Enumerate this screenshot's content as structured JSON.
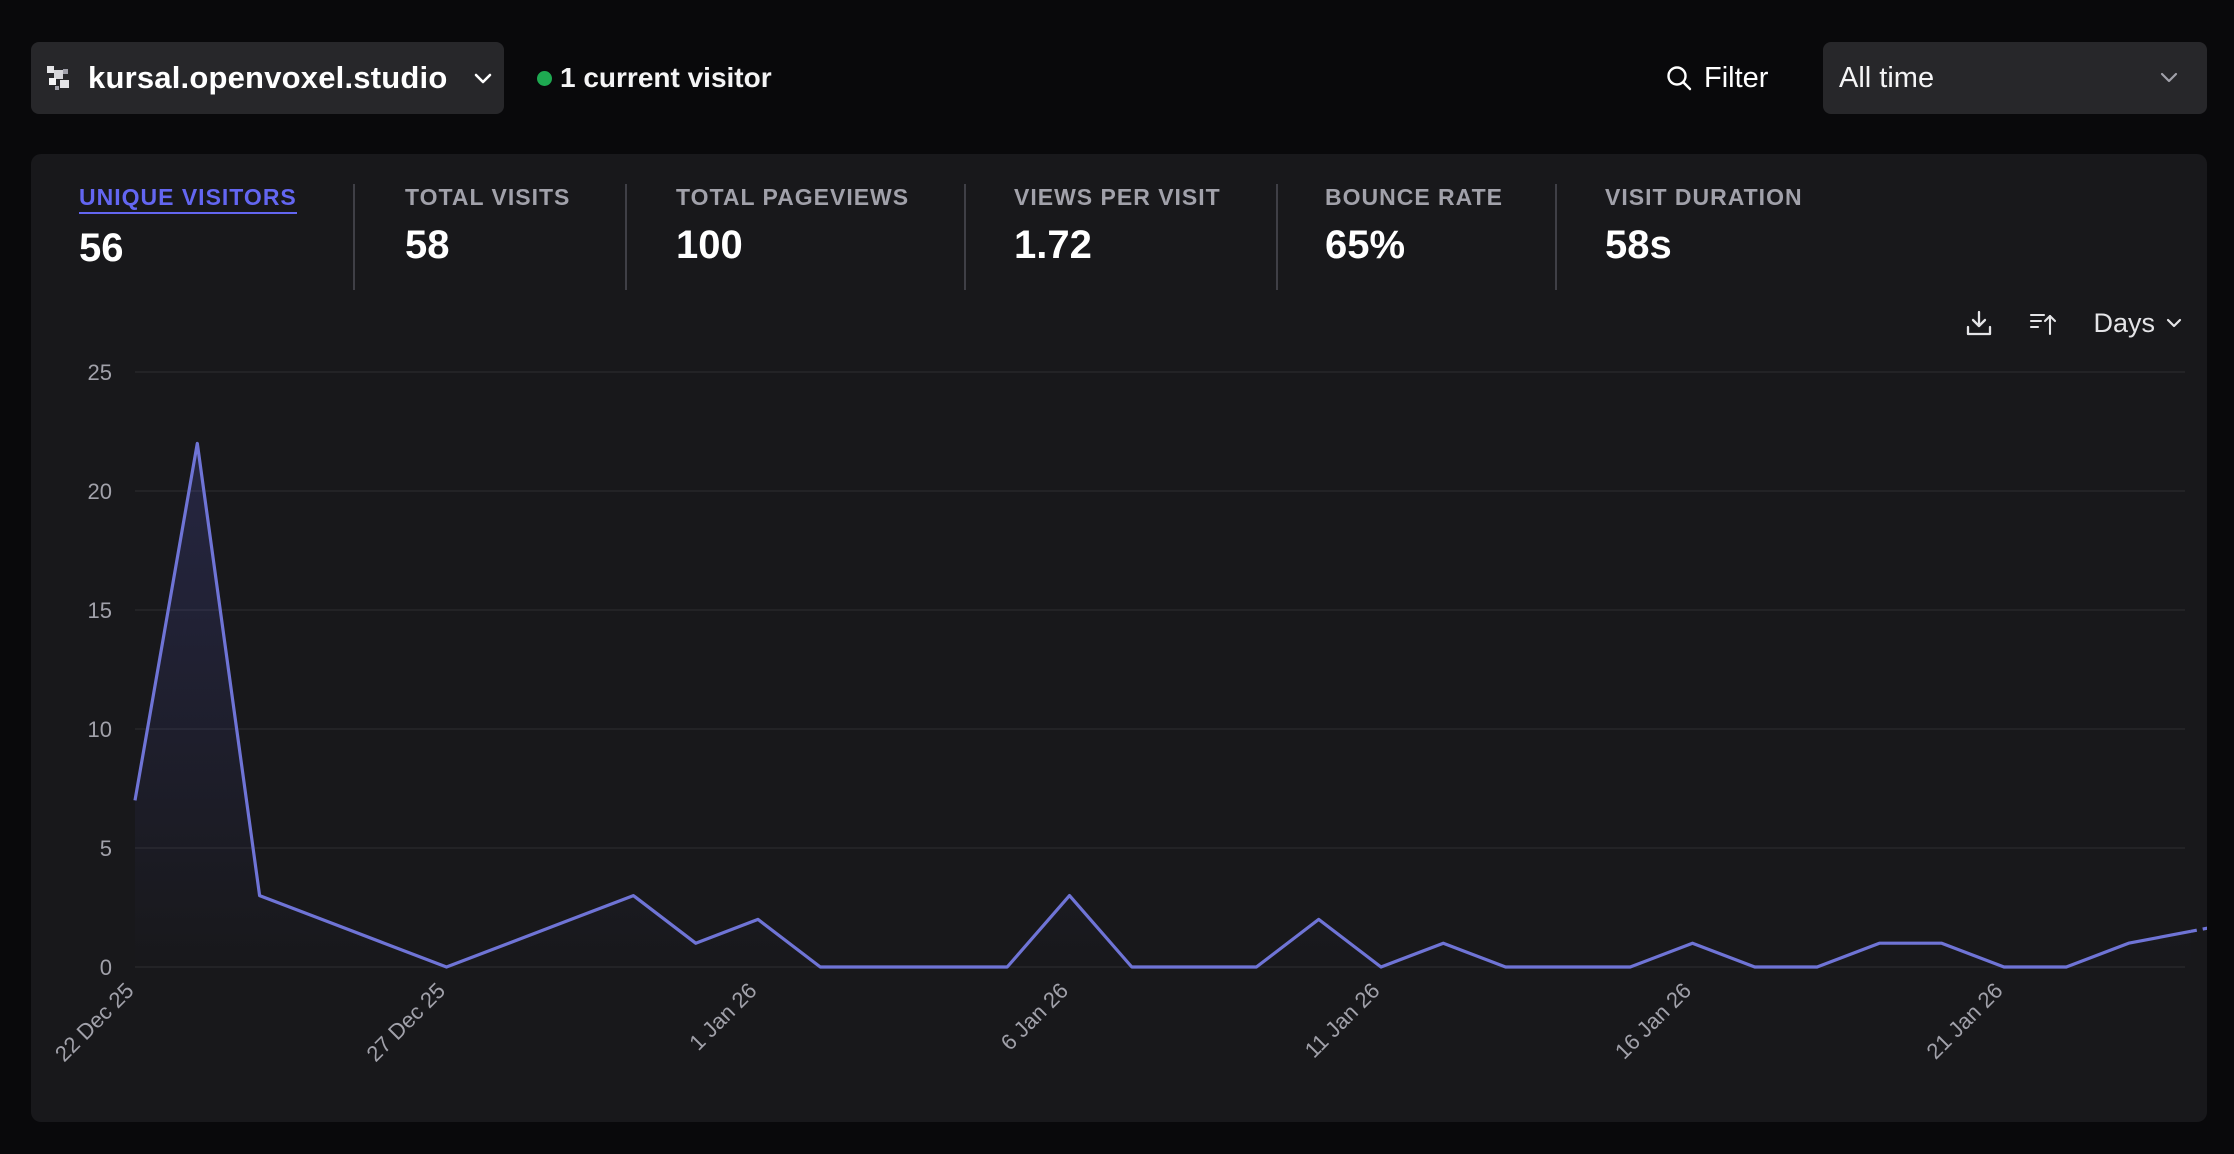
{
  "header": {
    "site_name": "kursal.openvoxel.studio",
    "current_visitors": "1 current visitor",
    "filter_label": "Filter",
    "period": "All time"
  },
  "stats": [
    {
      "label": "UNIQUE VISITORS",
      "value": "56",
      "active": true
    },
    {
      "label": "TOTAL VISITS",
      "value": "58",
      "active": false
    },
    {
      "label": "TOTAL PAGEVIEWS",
      "value": "100",
      "active": false
    },
    {
      "label": "VIEWS PER VISIT",
      "value": "1.72",
      "active": false
    },
    {
      "label": "BOUNCE RATE",
      "value": "65%",
      "active": false
    },
    {
      "label": "VISIT DURATION",
      "value": "58s",
      "active": false
    }
  ],
  "chart_controls": {
    "interval": "Days",
    "download_icon": "download-icon",
    "sort_icon": "sort-ascending-icon"
  },
  "colors": {
    "accent": "#6366f1",
    "line": "#6f74d6",
    "live": "#22c55e",
    "background": "#09090b",
    "panel": "#18181b"
  },
  "chart_data": {
    "type": "line",
    "title": "",
    "xlabel": "",
    "ylabel": "",
    "ylim": [
      0,
      25
    ],
    "yticks": [
      0,
      5,
      10,
      15,
      20,
      25
    ],
    "grid": true,
    "x_tick_labels": [
      "22 Dec 25",
      "27 Dec 25",
      "1 Jan 26",
      "6 Jan 26",
      "11 Jan 26",
      "16 Jan 26",
      "21 Jan 26"
    ],
    "x": [
      "22 Dec 25",
      "23 Dec 25",
      "24 Dec 25",
      "25 Dec 25",
      "26 Dec 25",
      "27 Dec 25",
      "28 Dec 25",
      "29 Dec 25",
      "30 Dec 25",
      "31 Dec 25",
      "1 Jan 26",
      "2 Jan 26",
      "3 Jan 26",
      "4 Jan 26",
      "5 Jan 26",
      "6 Jan 26",
      "7 Jan 26",
      "8 Jan 26",
      "9 Jan 26",
      "10 Jan 26",
      "11 Jan 26",
      "12 Jan 26",
      "13 Jan 26",
      "14 Jan 26",
      "15 Jan 26",
      "16 Jan 26",
      "17 Jan 26",
      "18 Jan 26",
      "19 Jan 26",
      "20 Jan 26",
      "21 Jan 26",
      "22 Jan 26",
      "23 Jan 26",
      "24 Jan 26",
      "25 Jan 26"
    ],
    "series": [
      {
        "values": [
          7,
          22,
          3,
          2,
          1,
          0,
          1,
          2,
          3,
          1,
          2,
          0,
          0,
          0,
          0,
          3,
          0,
          0,
          0,
          2,
          0,
          1,
          0,
          0,
          0,
          1,
          0,
          0,
          1,
          1,
          0,
          0,
          1,
          1.5,
          2
        ],
        "incomplete_from": "24 Jan 26"
      }
    ]
  }
}
